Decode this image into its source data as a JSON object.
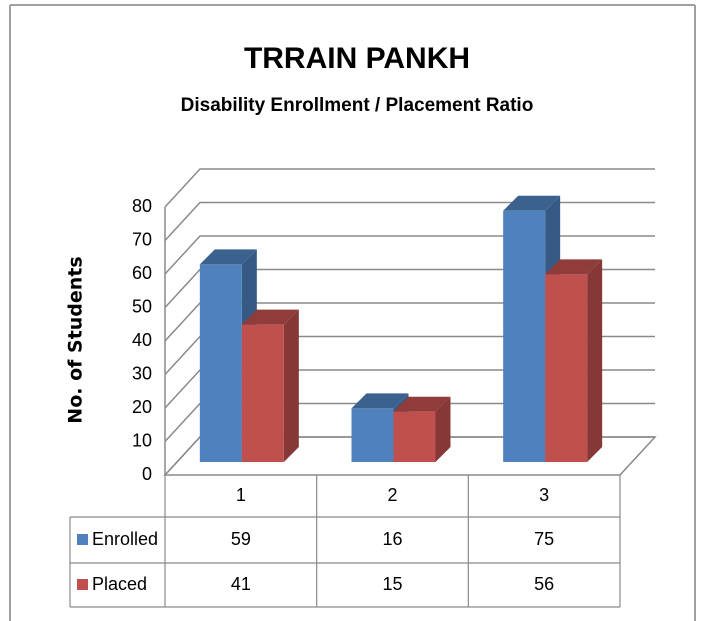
{
  "chart_data": {
    "type": "bar3d",
    "title": "TRRAIN PANKH",
    "subtitle": "Disability Enrollment / Placement Ratio",
    "y_label": "No. of Students",
    "categories": [
      "1",
      "2",
      "3"
    ],
    "series": [
      {
        "name": "Enrolled",
        "color": "#4f81bd",
        "values": [
          59,
          16,
          75
        ]
      },
      {
        "name": "Placed",
        "color": "#c0504d",
        "values": [
          41,
          15,
          56
        ]
      }
    ],
    "ylim": [
      0,
      80
    ],
    "yticks": [
      0,
      10,
      20,
      30,
      40,
      50,
      60,
      70,
      80
    ],
    "grid": true
  }
}
